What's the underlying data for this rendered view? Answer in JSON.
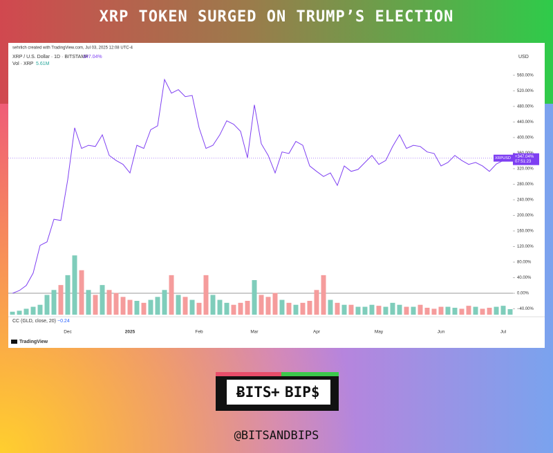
{
  "title": "XRP TOKEN SURGED ON TRUMP’S ELECTION",
  "credit": "sehrlich created with TradingView.com, Jul 03, 2025 12:08 UTC-4",
  "symbol_line": "XRP / U.S. Dollar · 1D · BITSTAMP",
  "symbol_value": "347.04%",
  "currency": "USD",
  "indicator": {
    "name": "CC (GLD, close, 20)",
    "value": "−0.24"
  },
  "brand": "TradingView",
  "logo": {
    "left": "ɃITS",
    "plus": "+",
    "right": "BIP$"
  },
  "handle": "@BITSANDBIPS",
  "chart_data": {
    "type": "line",
    "categories": [
      null,
      null,
      null,
      null,
      null,
      null,
      null,
      null,
      "Dec",
      null,
      null,
      null,
      null,
      null,
      null,
      null,
      null,
      "2025",
      null,
      null,
      null,
      null,
      null,
      null,
      null,
      null,
      null,
      "Feb",
      null,
      null,
      null,
      null,
      null,
      null,
      null,
      "Mar",
      null,
      null,
      null,
      null,
      null,
      null,
      null,
      null,
      "Apr",
      null,
      null,
      null,
      null,
      null,
      null,
      null,
      null,
      "May",
      null,
      null,
      null,
      null,
      null,
      null,
      null,
      null,
      "Jun",
      null,
      null,
      null,
      null,
      null,
      null,
      null,
      null,
      "Jul",
      null
    ],
    "series": [
      {
        "name": "XRPUSD",
        "color": "#7e3ff2",
        "values": [
          0,
          7,
          20,
          52,
          123,
          132,
          190,
          187,
          292,
          425,
          372,
          380,
          377,
          407,
          354,
          341,
          331,
          309,
          380,
          372,
          420,
          430,
          549,
          514,
          523,
          505,
          508,
          425,
          372,
          380,
          407,
          443,
          434,
          416,
          348,
          484,
          384,
          354,
          309,
          363,
          359,
          390,
          380,
          327,
          313,
          300,
          309,
          277,
          327,
          313,
          318,
          336,
          354,
          331,
          341,
          377,
          407,
          372,
          380,
          377,
          363,
          359,
          327,
          336,
          354,
          341,
          331,
          336,
          327,
          313,
          332,
          341,
          347.04
        ],
        "last_label": {
          "value": "+347.04%",
          "time": "07:51:23"
        }
      }
    ],
    "volume": {
      "name": "Vol · XRP",
      "value_label": "5.61M",
      "color_up": "#7fcdbb",
      "color_down": "#f59c9c",
      "values": [
        3,
        4,
        6,
        8,
        10,
        20,
        25,
        30,
        40,
        60,
        45,
        25,
        20,
        30,
        25,
        22,
        18,
        15,
        14,
        12,
        15,
        18,
        25,
        40,
        20,
        18,
        15,
        12,
        40,
        20,
        15,
        12,
        10,
        12,
        14,
        35,
        20,
        18,
        22,
        15,
        12,
        10,
        12,
        14,
        25,
        40,
        15,
        12,
        10,
        10,
        8,
        8,
        10,
        9,
        8,
        12,
        10,
        8,
        8,
        10,
        7,
        6,
        8,
        8,
        7,
        6,
        9,
        8,
        6,
        7,
        8,
        9,
        5.61
      ],
      "vlim": [
        0,
        70
      ]
    },
    "ylim": [
      -55,
      620
    ],
    "yticks": [
      {
        "value": 560,
        "label": "560.00%"
      },
      {
        "value": 520,
        "label": "520.00%"
      },
      {
        "value": 480,
        "label": "480.00%"
      },
      {
        "value": 440,
        "label": "440.00%"
      },
      {
        "value": 400,
        "label": "400.00%"
      },
      {
        "value": 360,
        "label": "360.00%"
      },
      {
        "value": 320,
        "label": "320.00%"
      },
      {
        "value": 280,
        "label": "280.00%"
      },
      {
        "value": 240,
        "label": "240.00%"
      },
      {
        "value": 200,
        "label": "200.00%"
      },
      {
        "value": 160,
        "label": "160.00%"
      },
      {
        "value": 120,
        "label": "120.00%"
      },
      {
        "value": 80,
        "label": "80.00%"
      },
      {
        "value": 40,
        "label": "40.00%"
      },
      {
        "value": 0,
        "label": "0.00%"
      },
      {
        "value": -40,
        "label": "−40.00%"
      }
    ],
    "baseline": 0,
    "grid": false
  }
}
